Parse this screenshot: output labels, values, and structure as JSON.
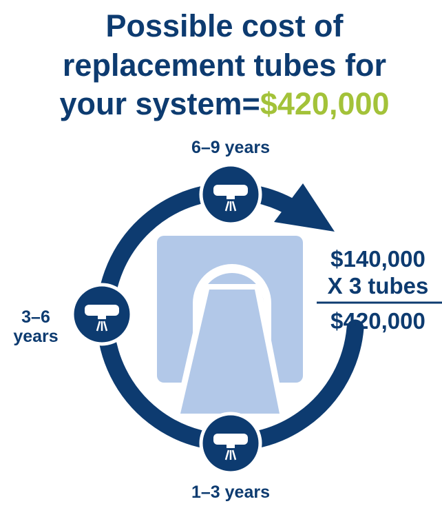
{
  "title": {
    "lines": [
      "Possible cost of",
      "replacement tubes for",
      "your system="
    ],
    "total": "$420,000"
  },
  "stages": [
    {
      "label": "6–9 years"
    },
    {
      "label_lines": [
        "3–6",
        "years"
      ]
    },
    {
      "label": "1–3 years"
    }
  ],
  "calculation": {
    "unit_cost": "$140,000",
    "multiplier": "X 3 tubes",
    "result": "$420,000"
  }
}
